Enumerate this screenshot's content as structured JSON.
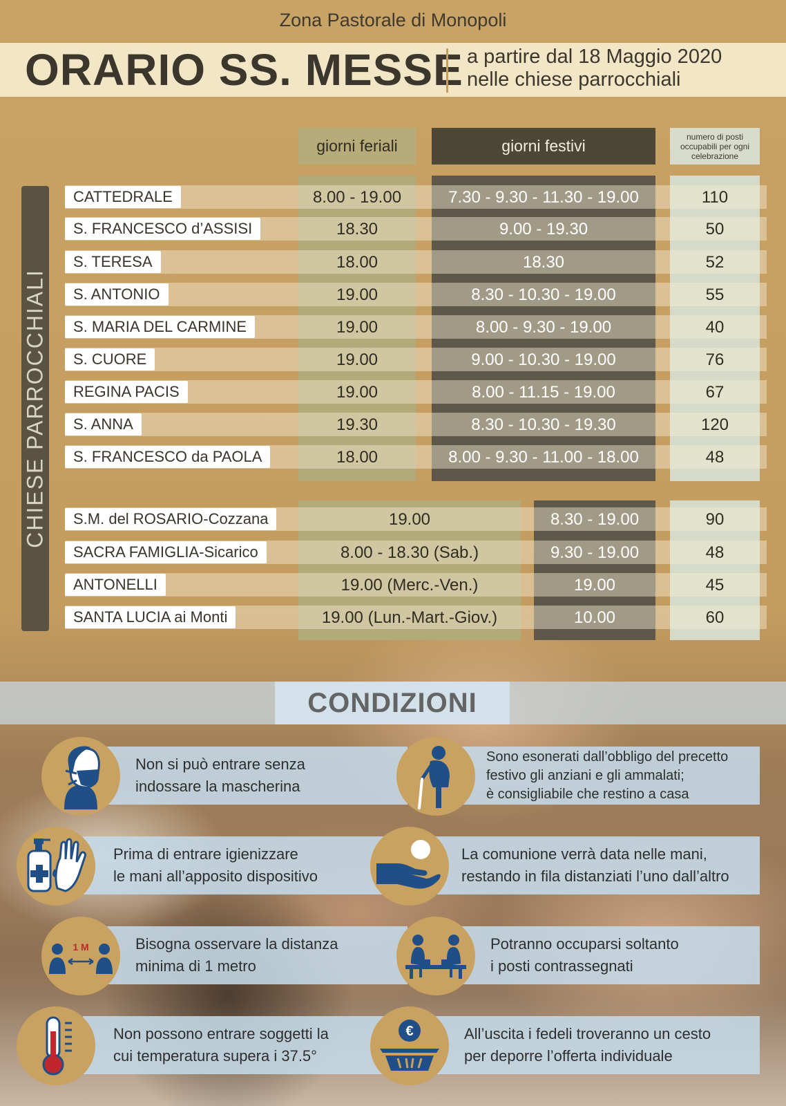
{
  "header": {
    "zona": "Zona Pastorale di Monopoli",
    "title": "ORARIO SS. MESSE",
    "subtitle_line1": "a partire dal 18 Maggio 2020",
    "subtitle_line2": "nelle chiese parrocchiali"
  },
  "columns": {
    "feriali": "giorni feriali",
    "festivi": "giorni festivi",
    "posti": "numero di posti occupabili per ogni celebrazione"
  },
  "side_label": "CHIESE PARROCCHIALI",
  "churches_main": [
    {
      "name": "CATTEDRALE",
      "feriali": "8.00 - 19.00",
      "festivi": "7.30 - 9.30 - 11.30 - 19.00",
      "posti": "110"
    },
    {
      "name": "S. FRANCESCO d’ASSISI",
      "feriali": "18.30",
      "festivi": "9.00 - 19.30",
      "posti": "50"
    },
    {
      "name": "S. TERESA",
      "feriali": "18.00",
      "festivi": "18.30",
      "posti": "52"
    },
    {
      "name": "S. ANTONIO",
      "feriali": "19.00",
      "festivi": "8.30 - 10.30 - 19.00",
      "posti": "55"
    },
    {
      "name": "S. MARIA DEL CARMINE",
      "feriali": "19.00",
      "festivi": "8.00 - 9.30 - 19.00",
      "posti": "40"
    },
    {
      "name": "S. CUORE",
      "feriali": "19.00",
      "festivi": "9.00 - 10.30 - 19.00",
      "posti": "76"
    },
    {
      "name": "REGINA PACIS",
      "feriali": "19.00",
      "festivi": "8.00 - 11.15 - 19.00",
      "posti": "67"
    },
    {
      "name": "S. ANNA",
      "feriali": "19.30",
      "festivi": "8.30 - 10.30 - 19.30",
      "posti": "120"
    },
    {
      "name": "S. FRANCESCO da PAOLA",
      "feriali": "18.00",
      "festivi": "8.00 - 9.30 - 11.00 - 18.00",
      "posti": "48"
    }
  ],
  "churches_other": [
    {
      "name": "S.M. del ROSARIO-Cozzana",
      "feriali": "19.00",
      "festivi": "8.30 - 19.00",
      "posti": "90"
    },
    {
      "name": "SACRA FAMIGLIA-Sicarico",
      "feriali": "8.00 - 18.30 (Sab.)",
      "festivi": "9.30 - 19.00",
      "posti": "48"
    },
    {
      "name": "ANTONELLI",
      "feriali": "19.00 (Merc.-Ven.)",
      "festivi": "19.00",
      "posti": "45"
    },
    {
      "name": "SANTA LUCIA ai Monti",
      "feriali": "19.00 (Lun.-Mart.-Giov.)",
      "festivi": "10.00",
      "posti": "60"
    }
  ],
  "conditions": {
    "title": "CONDIZIONI",
    "mask": {
      "line1": "Non si può entrare senza",
      "line2": "indossare la mascherina",
      "icon": "mask-icon"
    },
    "elderly": {
      "line1": "Sono esonerati dall’obbligo del precetto",
      "line2": "festivo gli anziani e gli ammalati;",
      "line3": "è consigliabile che restino a casa",
      "icon": "elderly-icon"
    },
    "sanitize": {
      "line1": "Prima di entrare igienizzare",
      "line2": "le mani all’apposito dispositivo",
      "icon": "sanitizer-icon"
    },
    "communion": {
      "line1": "La comunione verrà data nelle mani,",
      "line2": "restando in fila distanziati l’uno dall’altro",
      "icon": "communion-icon"
    },
    "distance": {
      "line1": "Bisogna osservare la distanza",
      "line2": "minima di 1 metro",
      "icon": "distance-icon",
      "icon_text": "1 M"
    },
    "seats": {
      "line1": "Potranno occuparsi soltanto",
      "line2": "i posti contrassegnati",
      "icon": "bench-icon"
    },
    "temperature": {
      "line1": "Non possono entrare soggetti la",
      "line2": "cui temperatura supera i 37.5°",
      "icon": "thermometer-icon"
    },
    "offering": {
      "line1": "All’uscita i fedeli troveranno un cesto",
      "line2": "per deporre l’offerta individuale",
      "icon": "offering-basket-icon",
      "icon_text": "€"
    }
  },
  "colors": {
    "gold": "#c9a261",
    "dark": "#4d4737",
    "olive": "#b3aa7a",
    "icon_blue": "#1f4f86"
  }
}
